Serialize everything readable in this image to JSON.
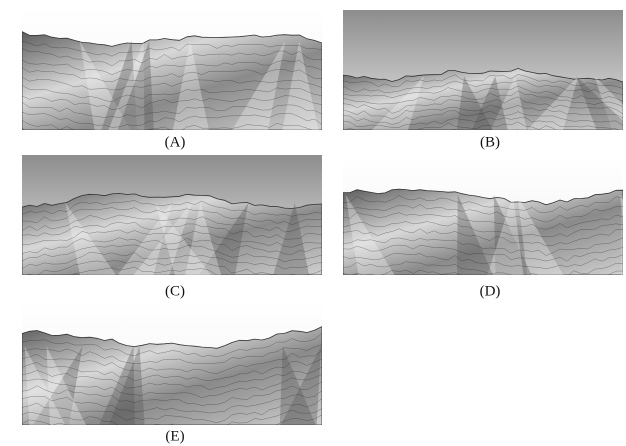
{
  "panels": [
    {
      "label": "(A)"
    },
    {
      "label": "(B)"
    },
    {
      "label": "(C)"
    },
    {
      "label": "(D)"
    },
    {
      "label": "(E)"
    }
  ]
}
